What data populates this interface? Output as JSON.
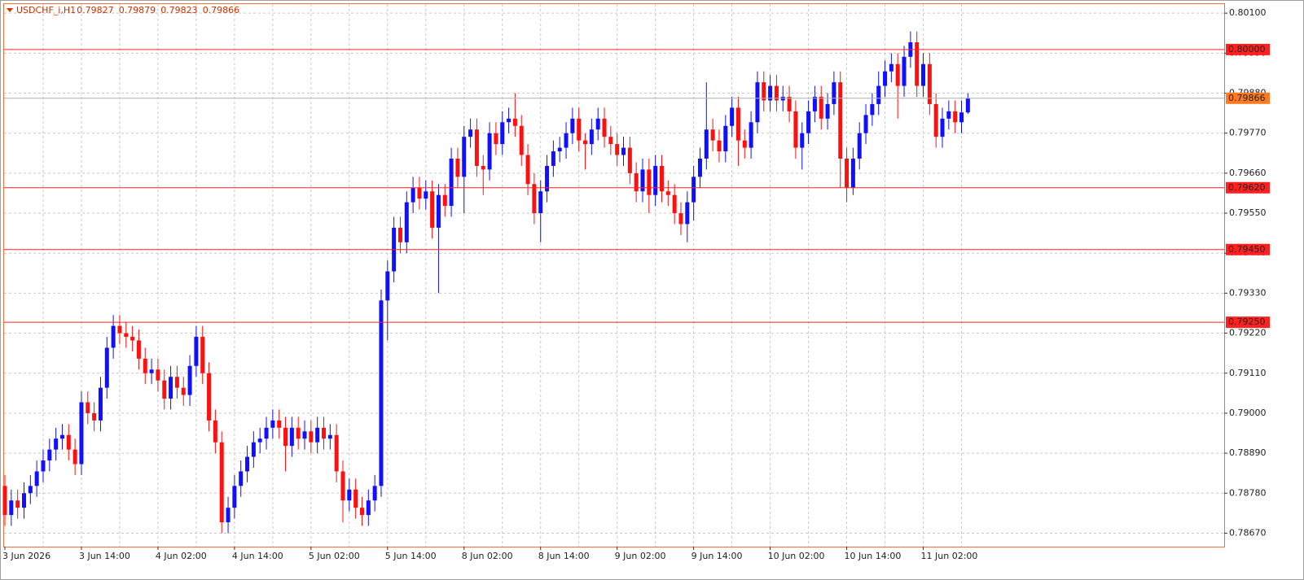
{
  "chart_data": {
    "type": "candlestick",
    "header": {
      "symbol": "USDCHF_i,H1",
      "ohlc": [
        "0.79827",
        "0.79879",
        "0.79823",
        "0.79866"
      ]
    },
    "categories": [
      "3 Jun 2026",
      null,
      null,
      null,
      null,
      null,
      null,
      null,
      null,
      null,
      null,
      null,
      "3 Jun 14:00",
      null,
      null,
      null,
      null,
      null,
      null,
      null,
      null,
      null,
      null,
      null,
      "4 Jun 02:00",
      null,
      null,
      null,
      null,
      null,
      null,
      null,
      null,
      null,
      null,
      null,
      "4 Jun 14:00",
      null,
      null,
      null,
      null,
      null,
      null,
      null,
      null,
      null,
      null,
      null,
      "5 Jun 02:00",
      null,
      null,
      null,
      null,
      null,
      null,
      null,
      null,
      null,
      null,
      null,
      "5 Jun 14:00",
      null,
      null,
      null,
      null,
      null,
      null,
      null,
      null,
      null,
      null,
      null,
      "8 Jun 02:00",
      null,
      null,
      null,
      null,
      null,
      null,
      null,
      null,
      null,
      null,
      null,
      "8 Jun 14:00",
      null,
      null,
      null,
      null,
      null,
      null,
      null,
      null,
      null,
      null,
      null,
      "9 Jun 02:00",
      null,
      null,
      null,
      null,
      null,
      null,
      null,
      null,
      null,
      null,
      null,
      "9 Jun 14:00",
      null,
      null,
      null,
      null,
      null,
      null,
      null,
      null,
      null,
      null,
      null,
      "10 Jun 02:00",
      null,
      null,
      null,
      null,
      null,
      null,
      null,
      null,
      null,
      null,
      null,
      "10 Jun 14:00",
      null,
      null,
      null,
      null,
      null,
      null,
      null,
      null,
      null,
      null,
      null,
      "11 Jun 02:00",
      null,
      null,
      null,
      null,
      null,
      null,
      null
    ],
    "open": [
      0.788,
      0.7872,
      0.7876,
      0.7874,
      0.7878,
      0.788,
      0.7884,
      0.7887,
      0.789,
      0.7893,
      0.7894,
      0.789,
      0.7886,
      0.7903,
      0.79,
      0.7898,
      0.7907,
      0.7918,
      0.7924,
      0.7922,
      0.7921,
      0.792,
      0.7915,
      0.7911,
      0.7912,
      0.7909,
      0.7904,
      0.791,
      0.7907,
      0.7905,
      0.7913,
      0.7921,
      0.7911,
      0.7898,
      0.7892,
      0.787,
      0.7874,
      0.788,
      0.7884,
      0.7888,
      0.7892,
      0.7893,
      0.7896,
      0.7898,
      0.7896,
      0.7891,
      0.7896,
      0.7893,
      0.7895,
      0.7892,
      0.7896,
      0.7893,
      0.7894,
      0.7884,
      0.7876,
      0.7879,
      0.7874,
      0.7872,
      0.7876,
      0.788,
      0.7931,
      0.7939,
      0.7951,
      0.7947,
      0.7958,
      0.7962,
      0.7959,
      0.7961,
      0.7951,
      0.796,
      0.7957,
      0.797,
      0.7965,
      0.7976,
      0.7978,
      0.7968,
      0.7967,
      0.7977,
      0.7974,
      0.798,
      0.7981,
      0.7979,
      0.7971,
      0.7963,
      0.7955,
      0.7961,
      0.7968,
      0.7972,
      0.7973,
      0.7977,
      0.7981,
      0.7975,
      0.7974,
      0.7978,
      0.7981,
      0.7976,
      0.7974,
      0.7971,
      0.7973,
      0.7966,
      0.7961,
      0.7967,
      0.796,
      0.7968,
      0.7961,
      0.796,
      0.7955,
      0.7952,
      0.7958,
      0.7965,
      0.797,
      0.7978,
      0.7975,
      0.7972,
      0.7979,
      0.7984,
      0.7975,
      0.7973,
      0.798,
      0.7991,
      0.7986,
      0.799,
      0.7986,
      0.7987,
      0.7983,
      0.7973,
      0.7977,
      0.7983,
      0.7987,
      0.7981,
      0.7985,
      0.7991,
      0.797,
      0.7962,
      0.797,
      0.7977,
      0.7982,
      0.7985,
      0.799,
      0.7994,
      0.7996,
      0.799,
      0.7998,
      0.8002,
      0.799,
      0.7996,
      0.7985,
      0.7976,
      0.7981,
      0.7983,
      0.798,
      0.79827
    ],
    "high": [
      0.7883,
      0.7879,
      0.7879,
      0.7881,
      0.7883,
      0.7887,
      0.789,
      0.7893,
      0.7896,
      0.7897,
      0.7897,
      0.7893,
      0.7906,
      0.7906,
      0.7903,
      0.791,
      0.7921,
      0.7927,
      0.7927,
      0.7925,
      0.7924,
      0.7923,
      0.7918,
      0.7915,
      0.7915,
      0.7912,
      0.7913,
      0.7913,
      0.791,
      0.7916,
      0.7924,
      0.7924,
      0.7914,
      0.7901,
      0.7895,
      0.7877,
      0.7883,
      0.7887,
      0.7891,
      0.7895,
      0.7896,
      0.7899,
      0.7901,
      0.7901,
      0.7899,
      0.7899,
      0.7899,
      0.7898,
      0.7898,
      0.7899,
      0.7899,
      0.7897,
      0.7897,
      0.7887,
      0.7882,
      0.7882,
      0.7877,
      0.7879,
      0.7883,
      0.7934,
      0.7942,
      0.7954,
      0.7954,
      0.7961,
      0.7965,
      0.7965,
      0.7964,
      0.7964,
      0.7963,
      0.7963,
      0.7973,
      0.7973,
      0.7979,
      0.7981,
      0.7981,
      0.7971,
      0.798,
      0.798,
      0.7983,
      0.7984,
      0.7988,
      0.7982,
      0.7974,
      0.7966,
      0.7964,
      0.7971,
      0.7975,
      0.7976,
      0.798,
      0.7984,
      0.7984,
      0.7977,
      0.7981,
      0.7984,
      0.7984,
      0.7979,
      0.7977,
      0.7976,
      0.7976,
      0.7969,
      0.797,
      0.797,
      0.7971,
      0.7971,
      0.7964,
      0.7963,
      0.7958,
      0.7961,
      0.7968,
      0.7973,
      0.7991,
      0.7981,
      0.7978,
      0.7982,
      0.7987,
      0.7987,
      0.7978,
      0.7983,
      0.7994,
      0.7994,
      0.7993,
      0.7993,
      0.799,
      0.799,
      0.7986,
      0.798,
      0.7986,
      0.799,
      0.799,
      0.7988,
      0.7994,
      0.7994,
      0.7973,
      0.7973,
      0.798,
      0.7985,
      0.7988,
      0.7994,
      0.7997,
      0.7999,
      0.7999,
      0.8001,
      0.8005,
      0.8005,
      0.7999,
      0.7999,
      0.7988,
      0.7984,
      0.7986,
      0.7986,
      0.7986,
      0.79879
    ],
    "low": [
      0.7869,
      0.7869,
      0.7871,
      0.7871,
      0.7875,
      0.7877,
      0.7881,
      0.7884,
      0.7887,
      0.789,
      0.7887,
      0.7883,
      0.7883,
      0.7897,
      0.7895,
      0.7895,
      0.7904,
      0.7915,
      0.7919,
      0.7918,
      0.7917,
      0.7912,
      0.7908,
      0.7908,
      0.7906,
      0.7901,
      0.7901,
      0.7904,
      0.7902,
      0.7902,
      0.791,
      0.7908,
      0.7895,
      0.7889,
      0.7867,
      0.7867,
      0.7871,
      0.7877,
      0.7881,
      0.7885,
      0.7889,
      0.789,
      0.7893,
      0.7893,
      0.7884,
      0.7888,
      0.789,
      0.789,
      0.7889,
      0.7889,
      0.789,
      0.789,
      0.7881,
      0.787,
      0.7873,
      0.7871,
      0.7869,
      0.7869,
      0.7873,
      0.7877,
      0.792,
      0.7936,
      0.7944,
      0.7944,
      0.7955,
      0.7956,
      0.7956,
      0.7948,
      0.7933,
      0.7954,
      0.7954,
      0.7962,
      0.7955,
      0.7973,
      0.7965,
      0.796,
      0.7964,
      0.7971,
      0.7971,
      0.7977,
      0.7976,
      0.7968,
      0.796,
      0.7952,
      0.7947,
      0.7958,
      0.7965,
      0.7969,
      0.797,
      0.7974,
      0.7972,
      0.7967,
      0.7971,
      0.7975,
      0.7973,
      0.7971,
      0.7968,
      0.7968,
      0.7963,
      0.7958,
      0.7958,
      0.7955,
      0.7957,
      0.7958,
      0.7957,
      0.7952,
      0.7949,
      0.7947,
      0.7953,
      0.7962,
      0.7967,
      0.7972,
      0.7969,
      0.7969,
      0.7976,
      0.7968,
      0.797,
      0.797,
      0.7977,
      0.7983,
      0.7983,
      0.7983,
      0.7983,
      0.798,
      0.797,
      0.7967,
      0.7974,
      0.798,
      0.7978,
      0.7978,
      0.7982,
      0.7962,
      0.7958,
      0.796,
      0.7967,
      0.7974,
      0.7979,
      0.7982,
      0.7987,
      0.7991,
      0.7981,
      0.7987,
      0.7995,
      0.7987,
      0.7987,
      0.7982,
      0.7973,
      0.7973,
      0.7978,
      0.7977,
      0.7977,
      0.79823
    ],
    "close": [
      0.7872,
      0.7876,
      0.7874,
      0.7878,
      0.788,
      0.7884,
      0.7887,
      0.789,
      0.7893,
      0.7894,
      0.789,
      0.7886,
      0.7903,
      0.79,
      0.7898,
      0.7907,
      0.7918,
      0.7924,
      0.7922,
      0.7921,
      0.792,
      0.7915,
      0.7911,
      0.7912,
      0.7909,
      0.7904,
      0.791,
      0.7907,
      0.7905,
      0.7913,
      0.7921,
      0.7911,
      0.7898,
      0.7892,
      0.787,
      0.7874,
      0.788,
      0.7884,
      0.7888,
      0.7892,
      0.7893,
      0.7896,
      0.7898,
      0.7896,
      0.7891,
      0.7896,
      0.7893,
      0.7895,
      0.7892,
      0.7896,
      0.7893,
      0.7894,
      0.7884,
      0.7876,
      0.7879,
      0.7874,
      0.7872,
      0.7876,
      0.788,
      0.7931,
      0.7939,
      0.7951,
      0.7947,
      0.7958,
      0.7962,
      0.7959,
      0.7961,
      0.7951,
      0.796,
      0.7957,
      0.797,
      0.7965,
      0.7976,
      0.7978,
      0.7968,
      0.7967,
      0.7977,
      0.7974,
      0.798,
      0.7981,
      0.7979,
      0.7971,
      0.7963,
      0.7955,
      0.7961,
      0.7968,
      0.7972,
      0.7973,
      0.7977,
      0.7981,
      0.7975,
      0.7974,
      0.7978,
      0.7981,
      0.7976,
      0.7974,
      0.7971,
      0.7973,
      0.7966,
      0.7961,
      0.7967,
      0.796,
      0.7968,
      0.7961,
      0.796,
      0.7955,
      0.7952,
      0.7958,
      0.7965,
      0.797,
      0.7978,
      0.7975,
      0.7972,
      0.7979,
      0.7984,
      0.7975,
      0.7973,
      0.798,
      0.7991,
      0.7986,
      0.799,
      0.7986,
      0.7987,
      0.7983,
      0.7973,
      0.7977,
      0.7983,
      0.7987,
      0.7981,
      0.7985,
      0.7991,
      0.797,
      0.7962,
      0.797,
      0.7977,
      0.7982,
      0.7985,
      0.799,
      0.7994,
      0.7996,
      0.799,
      0.7998,
      0.8002,
      0.799,
      0.7996,
      0.7985,
      0.7976,
      0.7981,
      0.7983,
      0.798,
      0.79827,
      0.79866
    ],
    "up_color": "#1010ff",
    "down_color": "#ff1010",
    "ylim": [
      0.78633,
      0.80125
    ],
    "yticks": [
      {
        "value": 0.801,
        "label": "0.80100"
      },
      {
        "value": 0.7999,
        "label": "0.79990"
      },
      {
        "value": 0.7988,
        "label": "0.79880"
      },
      {
        "value": 0.7977,
        "label": "0.79770"
      },
      {
        "value": 0.7966,
        "label": "0.79660"
      },
      {
        "value": 0.7955,
        "label": "0.79550"
      },
      {
        "value": 0.7944,
        "label": "0.79440"
      },
      {
        "value": 0.7933,
        "label": "0.79330"
      },
      {
        "value": 0.7922,
        "label": "0.79220"
      },
      {
        "value": 0.7911,
        "label": "0.79110"
      },
      {
        "value": 0.79,
        "label": "0.79000"
      },
      {
        "value": 0.7889,
        "label": "0.78890"
      },
      {
        "value": 0.7878,
        "label": "0.78780"
      },
      {
        "value": 0.7867,
        "label": "0.78670"
      }
    ],
    "grid": true,
    "levels": [
      {
        "value": 0.8,
        "label": "0.80000",
        "color": "#ff2020"
      },
      {
        "value": 0.7962,
        "label": "0.79620",
        "color": "#ff2020"
      },
      {
        "value": 0.7945,
        "label": "0.79450",
        "color": "#ff2020"
      },
      {
        "value": 0.7925,
        "label": "0.79250",
        "color": "#ff2020"
      }
    ],
    "bid": {
      "value": 0.79866,
      "label": "0.79866",
      "color": "#ff7a20"
    }
  }
}
